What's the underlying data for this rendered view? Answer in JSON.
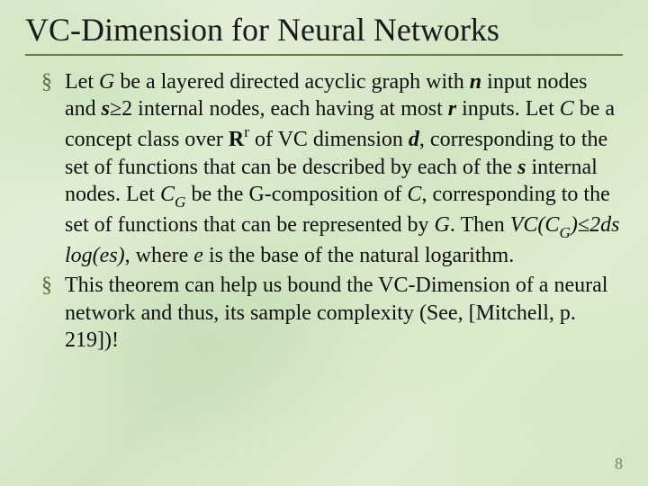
{
  "colors": {
    "title_text": "#1a1a1a",
    "rule": "#6b7a4a",
    "bullet_glyph": "#5a6b3a",
    "body_text": "#111111",
    "page_num": "#7a8660",
    "background_base": "#d8e8ca"
  },
  "typography": {
    "family": "Times New Roman",
    "title_size_pt": 27,
    "body_size_pt": 18,
    "body_line_height": 1.28
  },
  "title": "VC-Dimension for Neural Networks",
  "bullets": [
    {
      "glyph": "§",
      "html": "Let <i>G</i> be a layered directed acyclic graph with <i class=\"bold\">n</i> input nodes and <i class=\"bold\">s</i>≥2 internal nodes, each having at most <i class=\"bold\">r</i> inputs. Let <i>C</i> be a concept class over <span class=\"bold\">R</span><span class=\"sup\">r</span> of VC dimension <i class=\"bold\">d</i>, corresponding to the set of functions that can be described by each of the <i class=\"bold\">s</i> internal nodes. Let <i>C<span class=\"sub\">G</span></i> be the G-composition of <i>C</i>, corresponding to the set of functions that can be represented by <i>G</i>. Then <i>VC(C<span class=\"sub\">G</span>)</i>≤<i>2ds log(es)</i>, where <i>e</i> is the base of the natural logarithm."
    },
    {
      "glyph": "§",
      "html": "This theorem can help us bound the VC-Dimension of a neural network and thus, its sample complexity (See, [Mitchell, p. 219])!"
    }
  ],
  "page_number": "8"
}
